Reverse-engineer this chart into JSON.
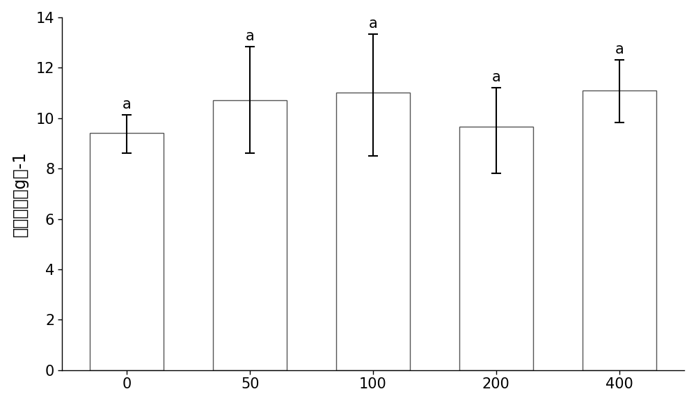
{
  "categories": [
    "0",
    "50",
    "100",
    "200",
    "400"
  ],
  "values": [
    9.4,
    10.7,
    11.0,
    9.65,
    11.1
  ],
  "error_upper": [
    0.72,
    2.12,
    2.32,
    1.55,
    1.2
  ],
  "error_lower": [
    0.78,
    2.1,
    2.5,
    1.85,
    1.28
  ],
  "bar_color": "#ffffff",
  "bar_edgecolor": "#555555",
  "error_colors": [
    "#000000",
    "#000000",
    "#000000",
    "#000000",
    "#000000"
  ],
  "significance_labels": [
    "a",
    "a",
    "a",
    "a",
    "a"
  ],
  "ylabel": "地上部干重g株-1",
  "ylim": [
    0,
    14
  ],
  "yticks": [
    0,
    2,
    4,
    6,
    8,
    10,
    12,
    14
  ],
  "bar_width": 0.6,
  "sig_fontsize": 15,
  "ylabel_fontsize": 17,
  "tick_fontsize": 15
}
